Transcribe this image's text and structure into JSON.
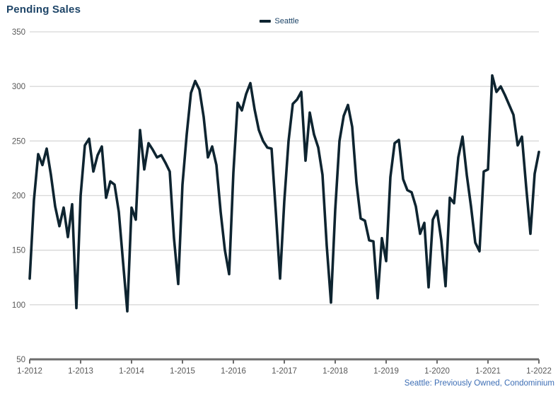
{
  "header": {
    "title": "Pending Sales"
  },
  "legend": {
    "items": [
      {
        "label": "Seattle",
        "color": "#0e2430"
      }
    ]
  },
  "footnote": {
    "text": "Seattle: Previously Owned, Condominium"
  },
  "colors": {
    "line": "#0e2430",
    "title_text": "#1d4467",
    "grid": "#d8d8d8",
    "axis_line": "#6d6d6d",
    "tick_label": "#595959",
    "footnote_text": "#3d6eb5",
    "background": "#ffffff"
  },
  "chart_data": {
    "type": "line",
    "title": "Pending Sales",
    "x_start": "1-2012",
    "x_end": "1-2022",
    "x_interval": "monthly",
    "x_tick_labels": [
      "1-2012",
      "1-2013",
      "1-2014",
      "1-2015",
      "1-2016",
      "1-2017",
      "1-2018",
      "1-2019",
      "1-2020",
      "1-2021",
      "1-2022"
    ],
    "y_ticks": [
      50,
      100,
      150,
      200,
      250,
      300,
      350
    ],
    "ylim": [
      50,
      350
    ],
    "grid": "horizontal",
    "legend_position": "top-center",
    "series": [
      {
        "name": "Seattle",
        "color": "#0e2430",
        "values": [
          124,
          196,
          238,
          228,
          243,
          219,
          190,
          172,
          189,
          162,
          192,
          97,
          200,
          246,
          252,
          222,
          237,
          245,
          198,
          213,
          210,
          185,
          139,
          94,
          189,
          178,
          260,
          224,
          248,
          242,
          235,
          237,
          230,
          222,
          161,
          119,
          210,
          256,
          294,
          305,
          297,
          272,
          235,
          245,
          228,
          185,
          150,
          128,
          221,
          285,
          278,
          293,
          303,
          279,
          260,
          250,
          244,
          243,
          185,
          124,
          195,
          250,
          284,
          288,
          295,
          232,
          276,
          256,
          244,
          219,
          154,
          102,
          187,
          250,
          273,
          283,
          263,
          212,
          179,
          177,
          159,
          158,
          106,
          161,
          140,
          217,
          248,
          251,
          215,
          205,
          203,
          190,
          165,
          175,
          116,
          178,
          186,
          159,
          117,
          198,
          193,
          235,
          254,
          219,
          190,
          157,
          149,
          222,
          224,
          310,
          295,
          300,
          292,
          283,
          274,
          246,
          254,
          208,
          165,
          220,
          240
        ]
      }
    ]
  }
}
